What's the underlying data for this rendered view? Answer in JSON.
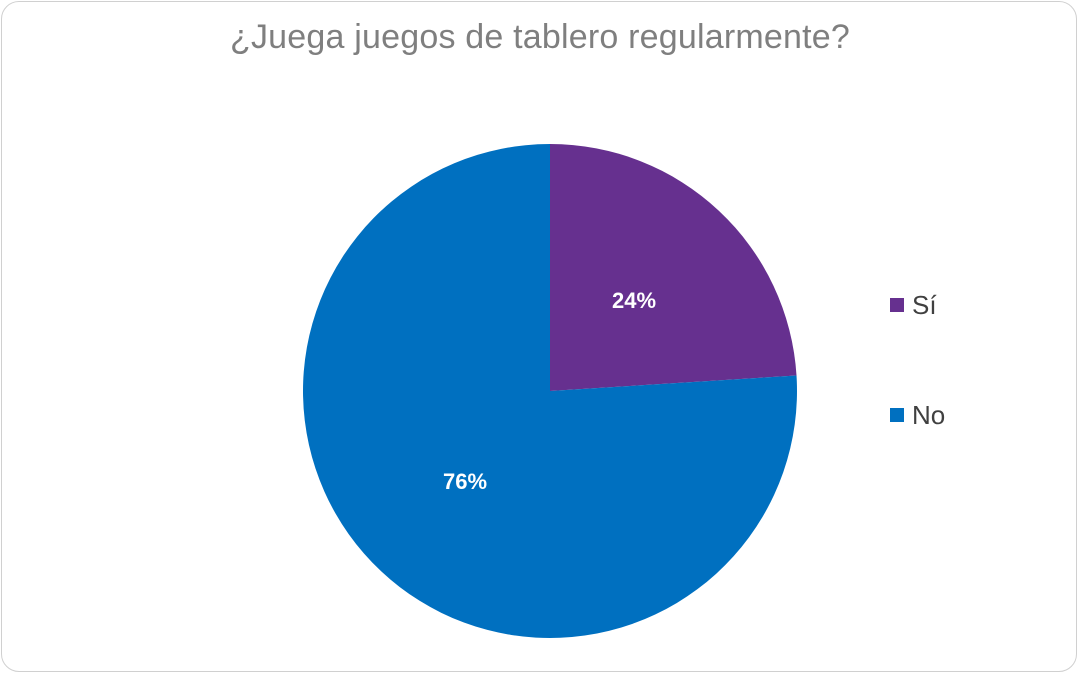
{
  "chart_data": {
    "type": "pie",
    "title": "¿Juega juegos de tablero regularmente?",
    "categories": [
      "Sí",
      "No"
    ],
    "values": [
      24,
      76
    ],
    "data_labels": [
      "24%",
      "76%"
    ],
    "colors": [
      "#66308f",
      "#0070c0"
    ],
    "legend_position": "right"
  }
}
